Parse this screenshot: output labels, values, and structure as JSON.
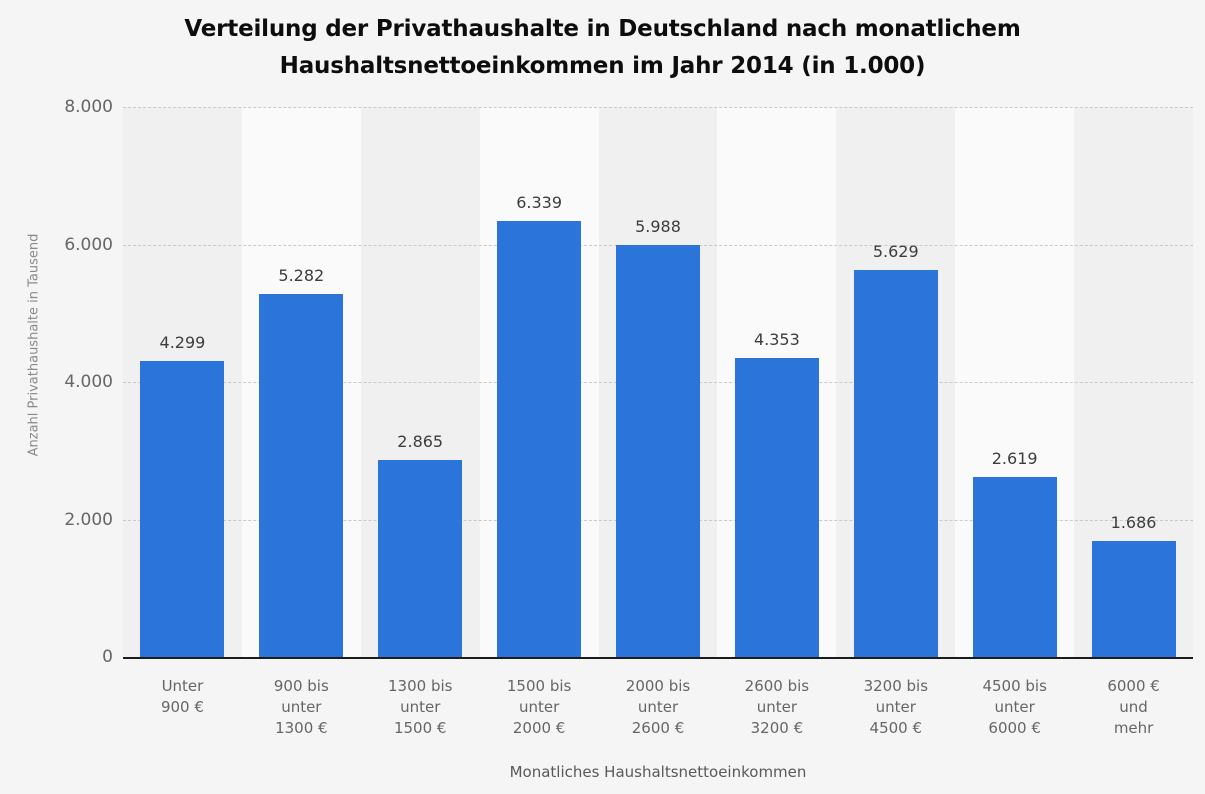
{
  "chart_data": {
    "type": "bar",
    "title": "Verteilung der Privathaushalte in Deutschland nach monatlichem Haushaltsnettoeinkommen im Jahr 2014 (in 1.000)",
    "title_lines": [
      "Verteilung der Privathaushalte in Deutschland nach monatlichem",
      "Haushaltsnettoeinkommen im Jahr 2014 (in 1.000)"
    ],
    "xlabel": "Monatliches Haushaltsnettoeinkommen",
    "ylabel": "Anzahl Privathaushalte in Tausend",
    "categories": [
      "Unter 900 €",
      "900 bis unter 1300 €",
      "1300 bis unter 1500 €",
      "1500 bis unter 2000 €",
      "2000 bis unter 2600 €",
      "2600 bis unter 3200 €",
      "3200 bis unter 4500 €",
      "4500 bis unter 6000 €",
      "6000 € und mehr"
    ],
    "category_lines": [
      [
        "Unter",
        "900 €"
      ],
      [
        "900 bis",
        "unter",
        "1300 €"
      ],
      [
        "1300 bis",
        "unter",
        "1500 €"
      ],
      [
        "1500 bis",
        "unter",
        "2000 €"
      ],
      [
        "2000 bis",
        "unter",
        "2600 €"
      ],
      [
        "2600 bis",
        "unter",
        "3200 €"
      ],
      [
        "3200 bis",
        "unter",
        "4500 €"
      ],
      [
        "4500 bis",
        "unter",
        "6000 €"
      ],
      [
        "6000 €",
        "und",
        "mehr"
      ]
    ],
    "values": [
      4299,
      5282,
      2865,
      6339,
      5988,
      4353,
      5629,
      2619,
      1686
    ],
    "value_labels": [
      "4.299",
      "5.282",
      "2.865",
      "6.339",
      "5.988",
      "4.353",
      "5.629",
      "2.619",
      "1.686"
    ],
    "ylim": [
      0,
      8000
    ],
    "yticks": [
      0,
      2000,
      4000,
      6000,
      8000
    ],
    "ytick_labels": [
      "0",
      "2.000",
      "4.000",
      "6.000",
      "8.000"
    ],
    "grid": "horizontal-dashed",
    "legend": "none",
    "colors": {
      "bar": "#2b74d9",
      "plot_band_dark": "#f0f0f0",
      "plot_band_light": "#fafafa",
      "gridline": "#c9c9c9",
      "axis_line": "#1c1c1c",
      "background": "#f5f5f5"
    }
  }
}
